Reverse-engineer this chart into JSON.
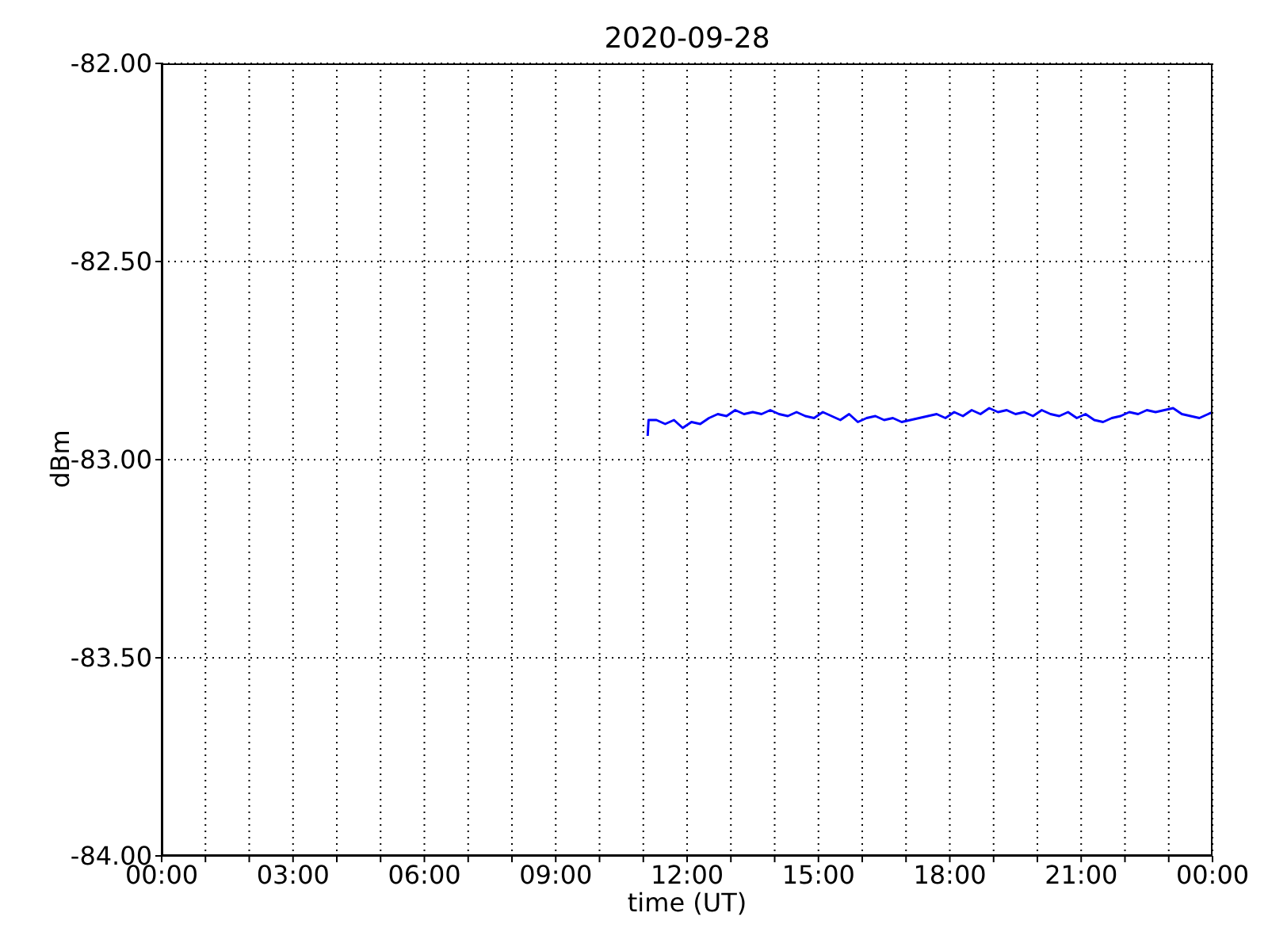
{
  "chart_data": {
    "type": "line",
    "title": "2020-09-28",
    "xlabel": "time (UT)",
    "ylabel": "dBm",
    "x": [
      11.1,
      11.12,
      11.3,
      11.5,
      11.7,
      11.9,
      12.1,
      12.3,
      12.5,
      12.7,
      12.9,
      13.1,
      13.3,
      13.5,
      13.7,
      13.9,
      14.1,
      14.3,
      14.5,
      14.7,
      14.9,
      15.1,
      15.3,
      15.5,
      15.7,
      15.9,
      16.1,
      16.3,
      16.5,
      16.7,
      16.9,
      17.1,
      17.3,
      17.5,
      17.7,
      17.9,
      18.1,
      18.3,
      18.5,
      18.7,
      18.9,
      19.1,
      19.3,
      19.5,
      19.7,
      19.9,
      20.1,
      20.3,
      20.5,
      20.7,
      20.9,
      21.1,
      21.3,
      21.5,
      21.7,
      21.9,
      22.1,
      22.3,
      22.5,
      22.7,
      22.9,
      23.1,
      23.3,
      23.5,
      23.7,
      23.9,
      24.0
    ],
    "series": [
      {
        "color": "#0000ff",
        "values": [
          -82.94,
          -82.9,
          -82.9,
          -82.91,
          -82.9,
          -82.92,
          -82.905,
          -82.91,
          -82.895,
          -82.885,
          -82.89,
          -82.875,
          -82.885,
          -82.88,
          -82.885,
          -82.875,
          -82.885,
          -82.89,
          -82.88,
          -82.89,
          -82.895,
          -82.88,
          -82.89,
          -82.9,
          -82.885,
          -82.905,
          -82.895,
          -82.89,
          -82.9,
          -82.895,
          -82.905,
          -82.9,
          -82.895,
          -82.89,
          -82.885,
          -82.895,
          -82.88,
          -82.89,
          -82.875,
          -82.885,
          -82.87,
          -82.88,
          -82.875,
          -82.885,
          -82.88,
          -82.89,
          -82.875,
          -82.885,
          -82.89,
          -82.88,
          -82.895,
          -82.885,
          -82.9,
          -82.905,
          -82.895,
          -82.89,
          -82.88,
          -82.885,
          -82.875,
          -82.88,
          -82.875,
          -82.87,
          -82.885,
          -82.89,
          -82.895,
          -82.885,
          -82.88
        ]
      }
    ],
    "xlim": [
      0,
      24
    ],
    "xticks": [
      {
        "value": 0,
        "label": "00:00"
      },
      {
        "value": 1,
        "label": null
      },
      {
        "value": 2,
        "label": null
      },
      {
        "value": 3,
        "label": "03:00"
      },
      {
        "value": 4,
        "label": null
      },
      {
        "value": 5,
        "label": null
      },
      {
        "value": 6,
        "label": "06:00"
      },
      {
        "value": 7,
        "label": null
      },
      {
        "value": 8,
        "label": null
      },
      {
        "value": 9,
        "label": "09:00"
      },
      {
        "value": 10,
        "label": null
      },
      {
        "value": 11,
        "label": null
      },
      {
        "value": 12,
        "label": "12:00"
      },
      {
        "value": 13,
        "label": null
      },
      {
        "value": 14,
        "label": null
      },
      {
        "value": 15,
        "label": "15:00"
      },
      {
        "value": 16,
        "label": null
      },
      {
        "value": 17,
        "label": null
      },
      {
        "value": 18,
        "label": "18:00"
      },
      {
        "value": 19,
        "label": null
      },
      {
        "value": 20,
        "label": null
      },
      {
        "value": 21,
        "label": "21:00"
      },
      {
        "value": 22,
        "label": null
      },
      {
        "value": 23,
        "label": null
      },
      {
        "value": 24,
        "label": "00:00"
      }
    ],
    "ylim": [
      -84,
      -82
    ],
    "yticks": [
      {
        "value": -84,
        "label": "-84.00"
      },
      {
        "value": -83.5,
        "label": "-83.50"
      },
      {
        "value": -83,
        "label": "-83.00"
      },
      {
        "value": -82.5,
        "label": "-82.50"
      },
      {
        "value": -82,
        "label": "-82.00"
      }
    ],
    "grid": true,
    "line_style": "solid",
    "marker": "none"
  }
}
